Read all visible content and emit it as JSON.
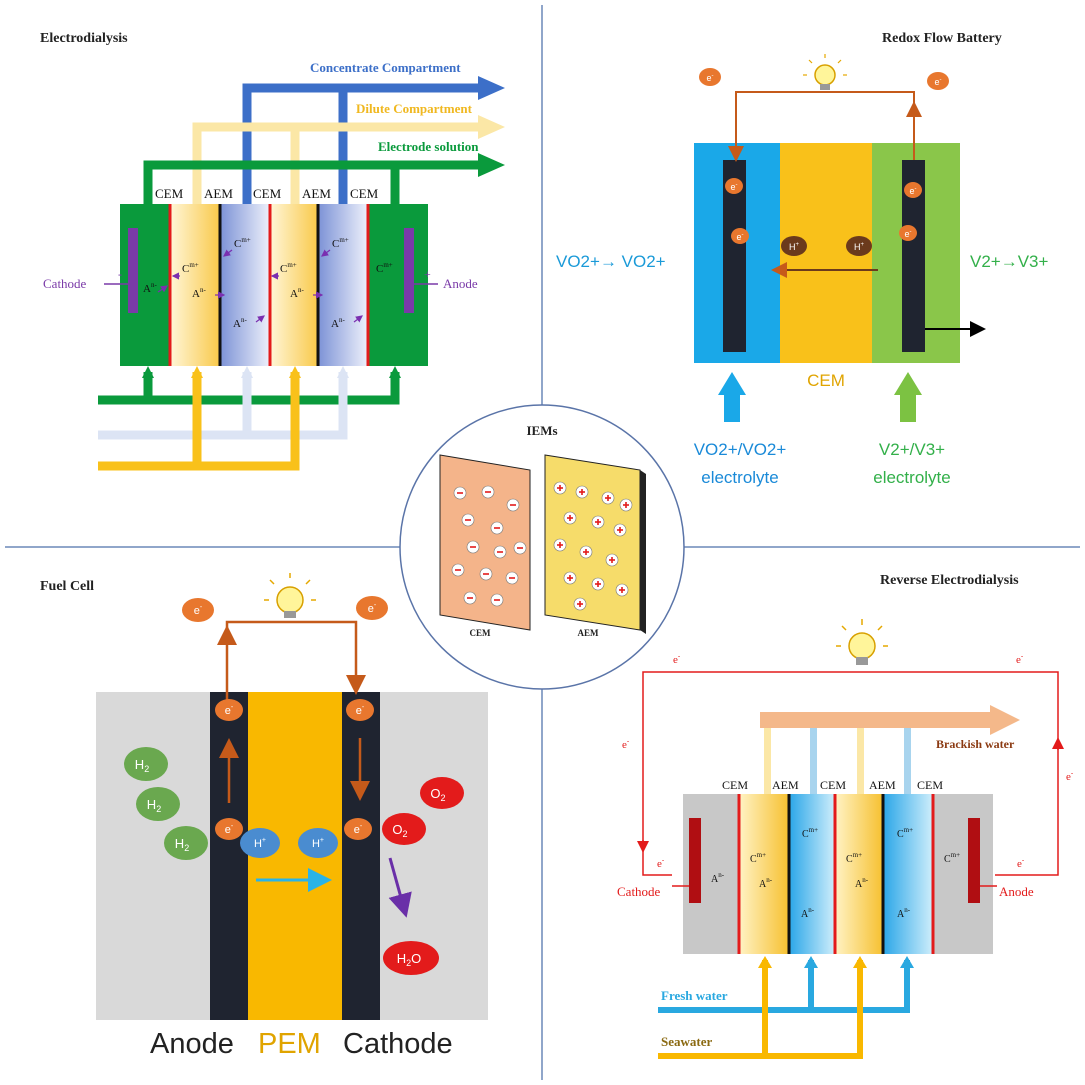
{
  "electrodialysis": {
    "title": "Electrodialysis",
    "concentrate": "Concentrate Compartment",
    "dilute": "Dilute Compartment",
    "electrode": "Electrode solution",
    "membranes": [
      "CEM",
      "AEM",
      "CEM",
      "AEM",
      "CEM"
    ],
    "cathode": "Cathode",
    "anode": "Anode",
    "minus": "-",
    "plus": "+",
    "cation": "C",
    "cation_sup": "m+",
    "anion": "A",
    "anion_sup": "n-"
  },
  "flow_battery": {
    "title": "Redox Flow Battery",
    "electron": "e",
    "electron_sup": "-",
    "proton": "H",
    "proton_sup": "+",
    "left_reaction": "VO2+→ VO2+",
    "right_reaction": "V2+→V3+",
    "membrane": "CEM",
    "left_electrolyte_1": "VO2+/VO2+",
    "left_electrolyte_2": "electrolyte",
    "right_electrolyte_1": "V2+/V3+",
    "right_electrolyte_2": "electrolyte"
  },
  "iems": {
    "title": "IEMs",
    "cem_label": "CEM",
    "aem_label": "AEM"
  },
  "fuel_cell": {
    "title": "Fuel Cell",
    "h2": "H",
    "h2_sub": "2",
    "o2": "O",
    "o2_sub": "2",
    "water": "H",
    "water_sub": "2",
    "water_o": "O",
    "proton": "H",
    "proton_sup": "+",
    "electron": "e",
    "electron_sup": "-",
    "anode": "Anode",
    "pem": "PEM",
    "cathode": "Cathode"
  },
  "red": {
    "title": "Reverse Electrodialysis",
    "electron": "e",
    "electron_sup": "-",
    "brackish": "Brackish water",
    "membranes": [
      "CEM",
      "AEM",
      "CEM",
      "AEM",
      "CEM"
    ],
    "cathode": "Cathode",
    "anode": "Anode",
    "fresh": "Fresh water",
    "seawater": "Seawater",
    "cation": "C",
    "cation_sup": "m+",
    "anion": "A",
    "anion_sup": "n-"
  },
  "colors": {
    "green": "#0a9a3c",
    "blue": "#3c6fc8",
    "yellow": "#f9c11a",
    "pale_yellow": "#fbe7a6",
    "pale_blue": "#dce4f4",
    "dark": "#1f2430",
    "orange": "#e8772e",
    "brown": "#c55a1a",
    "purple": "#7a2fb0",
    "red": "#e31b1b"
  }
}
